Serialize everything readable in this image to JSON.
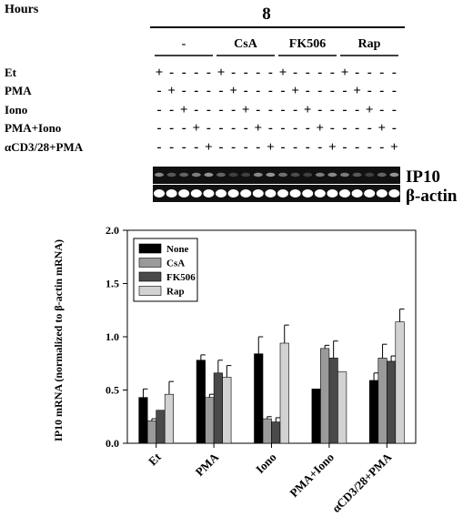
{
  "header": {
    "hours_label": "Hours",
    "time_value": "8"
  },
  "groups": [
    "-",
    "CsA",
    "FK506",
    "Rap"
  ],
  "conditions": [
    {
      "label": "Et",
      "signs": [
        "+",
        "-",
        "-",
        "-",
        "-",
        "+",
        "-",
        "-",
        "-",
        "-",
        "+",
        "-",
        "-",
        "-",
        "-",
        "+",
        "-",
        "-",
        "-",
        "-"
      ]
    },
    {
      "label": "PMA",
      "signs": [
        "-",
        "+",
        "-",
        "-",
        "-",
        "-",
        "+",
        "-",
        "-",
        "-",
        "-",
        "+",
        "-",
        "-",
        "-",
        "-",
        "+",
        "-",
        "-",
        "-"
      ]
    },
    {
      "label": "Iono",
      "signs": [
        "-",
        "-",
        "+",
        "-",
        "-",
        "-",
        "-",
        "+",
        "-",
        "-",
        "-",
        "-",
        "+",
        "-",
        "-",
        "-",
        "-",
        "+",
        "-",
        "-"
      ]
    },
    {
      "label": "PMA+Iono",
      "signs": [
        "-",
        "-",
        "-",
        "+",
        "-",
        "-",
        "-",
        "-",
        "+",
        "-",
        "-",
        "-",
        "-",
        "+",
        "-",
        "-",
        "-",
        "-",
        "+",
        "-"
      ]
    },
    {
      "label": "αCD3/28+PMA",
      "signs": [
        "-",
        "-",
        "-",
        "-",
        "+",
        "-",
        "-",
        "-",
        "-",
        "+",
        "-",
        "-",
        "-",
        "-",
        "+",
        "-",
        "-",
        "-",
        "-",
        "+"
      ]
    }
  ],
  "gel": {
    "ip10_label": "IP10",
    "actin_label": "β-actin"
  },
  "chart_data": {
    "type": "bar",
    "ylabel": "IP10 mRNA (normalized to β-actin mRNA)",
    "ylim": [
      0,
      2.0
    ],
    "yticks": [
      "0.0",
      "0.5",
      "1.0",
      "1.5",
      "2.0"
    ],
    "categories": [
      "Et",
      "PMA",
      "Iono",
      "PMA+Iono",
      "αCD3/28+PMA"
    ],
    "series": [
      {
        "name": "None",
        "color": "#000000",
        "values": [
          0.43,
          0.78,
          0.84,
          0.51,
          0.59
        ],
        "errors": [
          0.08,
          0.05,
          0.16,
          0.0,
          0.07
        ]
      },
      {
        "name": "CsA",
        "color": "#9a9a9a",
        "values": [
          0.21,
          0.43,
          0.23,
          0.89,
          0.8
        ],
        "errors": [
          0.02,
          0.03,
          0.02,
          0.03,
          0.13
        ]
      },
      {
        "name": "FK506",
        "color": "#4a4a4a",
        "values": [
          0.31,
          0.66,
          0.2,
          0.8,
          0.77
        ],
        "errors": [
          0.0,
          0.12,
          0.04,
          0.16,
          0.05
        ]
      },
      {
        "name": "Rap",
        "color": "#d2d2d2",
        "values": [
          0.46,
          0.62,
          0.94,
          0.67,
          1.14
        ],
        "errors": [
          0.12,
          0.11,
          0.17,
          0.0,
          0.12
        ]
      }
    ],
    "legend_position": "top-left"
  }
}
